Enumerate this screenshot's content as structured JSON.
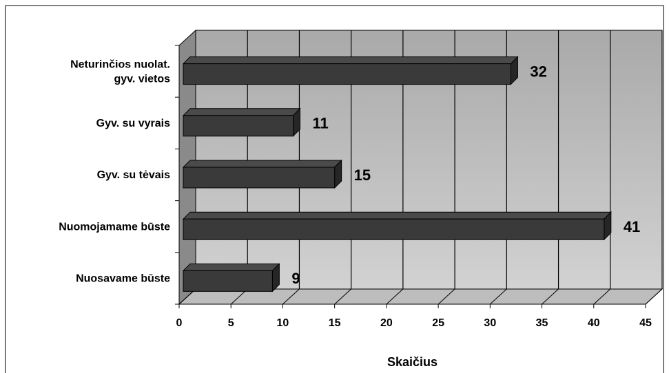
{
  "chart_data": {
    "type": "bar",
    "orientation": "horizontal",
    "style": "3d",
    "categories": [
      "Neturinčios nuolat. gyv. vietos",
      "Gyv. su vyrais",
      "Gyv. su tėvais",
      "Nuomojamame būste",
      "Nuosavame būste"
    ],
    "category_lines": [
      [
        "Neturinčios nuolat.",
        "gyv. vietos"
      ],
      [
        "Gyv. su vyrais"
      ],
      [
        "Gyv. su tėvais"
      ],
      [
        "Nuomojamame būste"
      ],
      [
        "Nuosavame būste"
      ]
    ],
    "values": [
      32,
      11,
      15,
      41,
      9
    ],
    "data_labels": [
      "32",
      "11",
      "15",
      "41",
      "9"
    ],
    "x_ticks": [
      0,
      5,
      10,
      15,
      20,
      25,
      30,
      35,
      40,
      45
    ],
    "x_tick_labels": [
      "0",
      "5",
      "10",
      "15",
      "20",
      "25",
      "30",
      "35",
      "40",
      "45"
    ],
    "xlim": [
      0,
      45
    ],
    "xlabel": "Skaičius",
    "ylabel": "",
    "title": "",
    "grid": true,
    "legend": "none",
    "colors": {
      "bar_front": "#3a3a3a",
      "bar_top": "#4a4a4a",
      "bar_side": "#262626",
      "wall_light": "#d2d2d2",
      "wall_dark": "#a9a9a9",
      "floor": "#bdbdbd",
      "side_wall": "#8a8a8a",
      "grid": "#000000"
    }
  }
}
